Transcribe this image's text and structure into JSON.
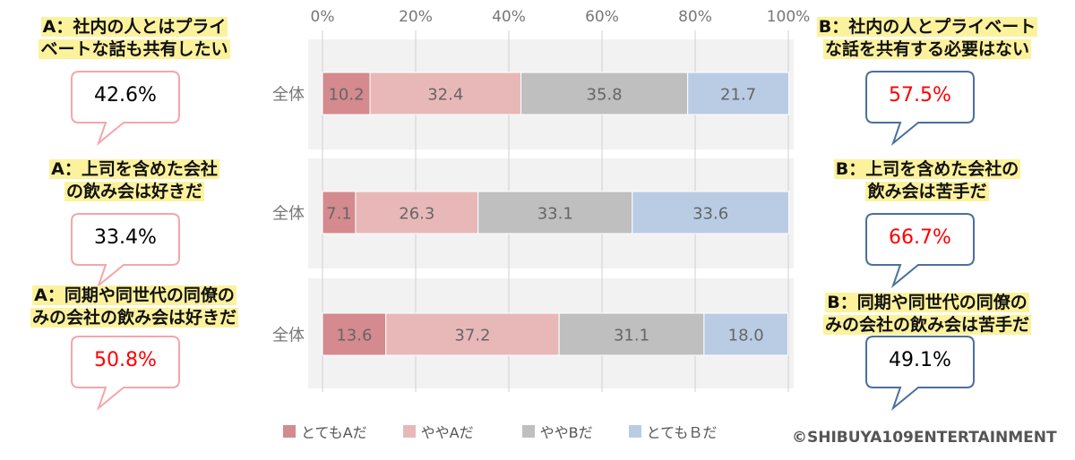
{
  "chart_data": {
    "type": "bar",
    "orientation": "horizontal",
    "stacked": true,
    "xlim": [
      0,
      100
    ],
    "x_ticks": [
      "0%",
      "20%",
      "40%",
      "60%",
      "80%",
      "100%"
    ],
    "grid": true,
    "legend_position": "bottom",
    "series": [
      {
        "name": "とてもAだ",
        "color": "#d48a8e"
      },
      {
        "name": "ややAだ",
        "color": "#e8b8b9"
      },
      {
        "name": "ややBだ",
        "color": "#bfbfbf"
      },
      {
        "name": "とてもＢだ",
        "color": "#b9cce4"
      }
    ],
    "panels": [
      {
        "category": "全体",
        "values": [
          10.2,
          32.4,
          35.8,
          21.7
        ],
        "labels": [
          "10.2",
          "32.4",
          "35.8",
          "21.7"
        ],
        "left_label": [
          "A：社内の人とはプライ",
          "ベートな話も共有したい"
        ],
        "left_pct": "42.6%",
        "left_pct_color": "#000000",
        "right_label": [
          "B：社内の人とプライベート",
          "な話を共有する必要はない"
        ],
        "right_pct": "57.5%",
        "right_pct_color": "#ff0000"
      },
      {
        "category": "全体",
        "values": [
          7.1,
          26.3,
          33.1,
          33.6
        ],
        "labels": [
          "7.1",
          "26.3",
          "33.1",
          "33.6"
        ],
        "left_label": [
          "A：上司を含めた会社",
          "の飲み会は好きだ"
        ],
        "left_pct": "33.4%",
        "left_pct_color": "#000000",
        "right_label": [
          "B：上司を含めた会社の",
          "飲み会は苦手だ"
        ],
        "right_pct": "66.7%",
        "right_pct_color": "#ff0000"
      },
      {
        "category": "全体",
        "values": [
          13.6,
          37.2,
          31.1,
          18.0
        ],
        "labels": [
          "13.6",
          "37.2",
          "31.1",
          "18.0"
        ],
        "left_label": [
          "A：同期や同世代の同僚の",
          "みの会社の飲み会は好きだ"
        ],
        "left_pct": "50.8%",
        "left_pct_color": "#ff0000",
        "right_label": [
          "B：同期や同世代の同僚の",
          "みの会社の飲み会は苦手だ"
        ],
        "right_pct": "49.1%",
        "right_pct_color": "#000000"
      }
    ]
  },
  "colors": {
    "left_callout_border": "#f4a6aa",
    "right_callout_border": "#4a6fa0",
    "label_highlight": "#fcf29c"
  },
  "copyright": "©SHIBUYA109ENTERTAINMENT"
}
